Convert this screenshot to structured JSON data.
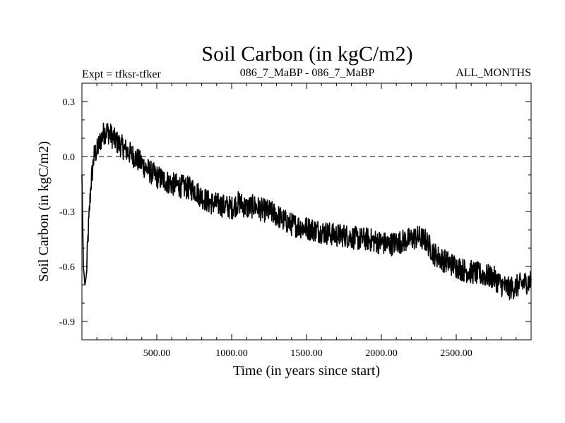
{
  "chart_data": {
    "type": "line",
    "title": "Soil Carbon (in kgC/m2)",
    "subtitle_left": "Expt = tfksr-tfker",
    "subtitle_center": "086_7_MaBP - 086_7_MaBP",
    "subtitle_right": "ALL_MONTHS",
    "xlabel": "Time (in years since start)",
    "ylabel": "Soil Carbon (in kgC/m2)",
    "xlim": [
      0,
      3000
    ],
    "ylim": [
      -1.0,
      0.4
    ],
    "xticks": [
      500,
      1000,
      1500,
      2000,
      2500
    ],
    "xtick_labels": [
      "500.00",
      "1000.00",
      "1500.00",
      "2000.00",
      "2500.00"
    ],
    "yticks": [
      0.3,
      0.0,
      -0.3,
      -0.6,
      -0.9
    ],
    "ytick_labels": [
      "0.3",
      "0.0",
      "-0.3",
      "-0.6",
      "-0.9"
    ],
    "reference_line": {
      "y": 0.0,
      "style": "dashed"
    },
    "series": [
      {
        "name": "Soil Carbon",
        "x": [
          0,
          10,
          20,
          30,
          40,
          50,
          60,
          70,
          80,
          90,
          100,
          120,
          140,
          160,
          180,
          200,
          230,
          260,
          300,
          350,
          400,
          450,
          500,
          550,
          600,
          650,
          700,
          750,
          800,
          850,
          900,
          950,
          1000,
          1050,
          1100,
          1150,
          1200,
          1250,
          1300,
          1350,
          1400,
          1450,
          1500,
          1550,
          1600,
          1650,
          1700,
          1750,
          1800,
          1850,
          1900,
          1950,
          2000,
          2050,
          2100,
          2150,
          2200,
          2250,
          2300,
          2350,
          2400,
          2450,
          2500,
          2550,
          2600,
          2650,
          2700,
          2750,
          2800,
          2850,
          2900,
          2950,
          3000
        ],
        "values": [
          -0.1,
          -0.6,
          -0.7,
          -0.65,
          -0.45,
          -0.3,
          -0.15,
          -0.08,
          0.0,
          0.02,
          0.03,
          0.08,
          0.12,
          0.14,
          0.13,
          0.11,
          0.08,
          0.06,
          0.03,
          0.0,
          -0.04,
          -0.08,
          -0.11,
          -0.13,
          -0.15,
          -0.16,
          -0.17,
          -0.18,
          -0.22,
          -0.25,
          -0.26,
          -0.27,
          -0.28,
          -0.25,
          -0.28,
          -0.27,
          -0.29,
          -0.3,
          -0.32,
          -0.35,
          -0.37,
          -0.38,
          -0.39,
          -0.4,
          -0.41,
          -0.42,
          -0.43,
          -0.43,
          -0.44,
          -0.45,
          -0.45,
          -0.46,
          -0.47,
          -0.48,
          -0.47,
          -0.46,
          -0.45,
          -0.44,
          -0.46,
          -0.53,
          -0.56,
          -0.58,
          -0.6,
          -0.62,
          -0.63,
          -0.64,
          -0.65,
          -0.66,
          -0.7,
          -0.72,
          -0.71,
          -0.69,
          -0.68
        ]
      }
    ]
  }
}
